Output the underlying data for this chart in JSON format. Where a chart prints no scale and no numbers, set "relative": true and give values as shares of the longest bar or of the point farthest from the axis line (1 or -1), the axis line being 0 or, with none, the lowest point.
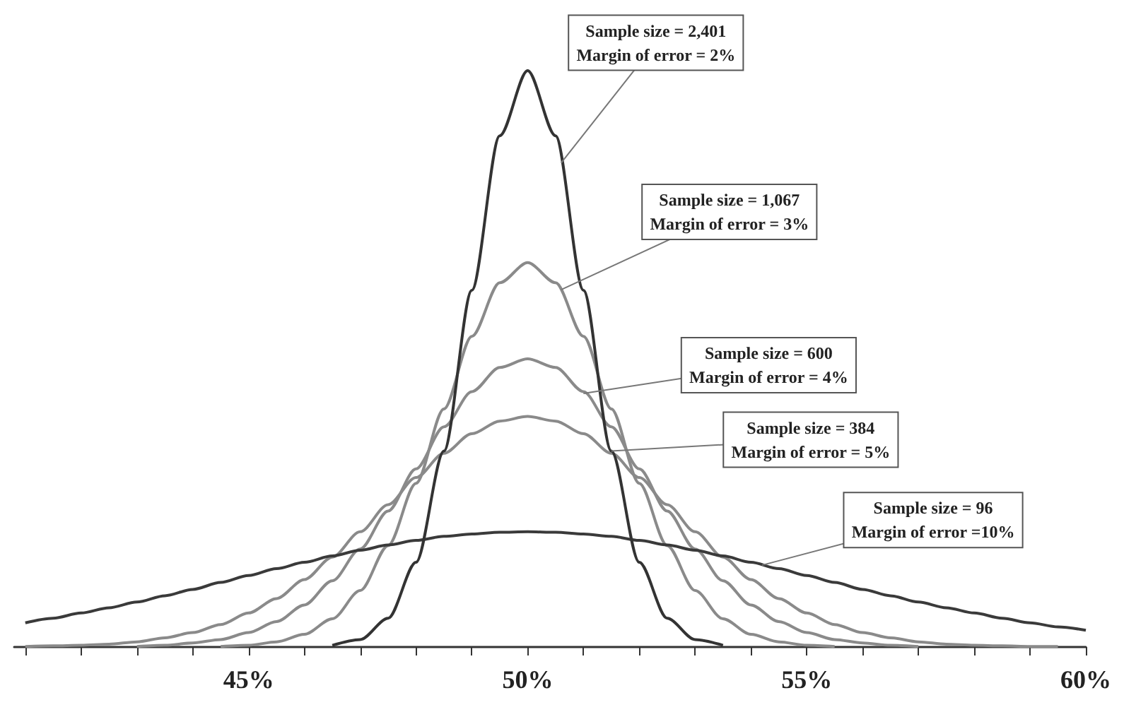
{
  "chart_data": {
    "type": "line",
    "relative": true,
    "marker": "none",
    "line_style": "solid",
    "x": [
      41,
      41.5,
      42,
      42.5,
      43,
      43.5,
      44,
      44.5,
      45,
      45.5,
      46,
      46.5,
      47,
      47.5,
      48,
      48.5,
      49,
      49.5,
      50,
      50.5,
      51,
      51.5,
      52,
      52.5,
      53,
      53.5,
      54,
      54.5,
      55,
      55.5,
      56,
      56.5,
      57,
      57.5,
      58,
      58.5,
      59,
      59.5,
      60
    ],
    "xlim": [
      40.8,
      60
    ],
    "xticks": [
      {
        "value": 41,
        "label": null
      },
      {
        "value": 42,
        "label": null
      },
      {
        "value": 43,
        "label": null
      },
      {
        "value": 44,
        "label": null
      },
      {
        "value": 45,
        "label": "45%"
      },
      {
        "value": 46,
        "label": null
      },
      {
        "value": 47,
        "label": null
      },
      {
        "value": 48,
        "label": null
      },
      {
        "value": 49,
        "label": null
      },
      {
        "value": 50,
        "label": "50%"
      },
      {
        "value": 51,
        "label": null
      },
      {
        "value": 52,
        "label": null
      },
      {
        "value": 53,
        "label": null
      },
      {
        "value": 54,
        "label": null
      },
      {
        "value": 55,
        "label": "55%"
      },
      {
        "value": 56,
        "label": null
      },
      {
        "value": 57,
        "label": null
      },
      {
        "value": 58,
        "label": null
      },
      {
        "value": 59,
        "label": null
      },
      {
        "value": 60,
        "label": "60%"
      }
    ],
    "series": [
      {
        "color": "#8a8a8a",
        "values": [
          0.001,
          0.002,
          0.003,
          0.005,
          0.009,
          0.016,
          0.025,
          0.039,
          0.059,
          0.084,
          0.117,
          0.156,
          0.2,
          0.247,
          0.294,
          0.336,
          0.37,
          0.392,
          0.4,
          0.392,
          0.37,
          0.336,
          0.294,
          0.247,
          0.2,
          0.156,
          0.117,
          0.084,
          0.059,
          0.039,
          0.025,
          0.016,
          0.009,
          0.005,
          0.003,
          0.002,
          0.001,
          0.001,
          null
        ]
      },
      {
        "color": "#8a8a8a",
        "values": [
          null,
          null,
          null,
          null,
          0.001,
          0.003,
          0.007,
          0.013,
          0.025,
          0.044,
          0.073,
          0.115,
          0.17,
          0.236,
          0.309,
          0.382,
          0.443,
          0.485,
          0.5,
          0.485,
          0.443,
          0.382,
          0.309,
          0.236,
          0.17,
          0.115,
          0.073,
          0.044,
          0.025,
          0.013,
          0.007,
          0.003,
          0.001,
          null,
          null,
          null,
          null,
          null,
          null
        ]
      },
      {
        "color": "#8a8a8a",
        "values": [
          null,
          null,
          null,
          null,
          null,
          null,
          null,
          0.001,
          0.003,
          0.009,
          0.022,
          0.049,
          0.098,
          0.176,
          0.284,
          0.413,
          0.539,
          0.632,
          0.667,
          0.632,
          0.539,
          0.413,
          0.284,
          0.176,
          0.098,
          0.049,
          0.022,
          0.009,
          0.003,
          0.001,
          null,
          null,
          null,
          null,
          null,
          null,
          null,
          null,
          null
        ]
      },
      {
        "color": "#3a3a3a",
        "values": [
          0.042,
          0.05,
          0.059,
          0.068,
          0.078,
          0.089,
          0.1,
          0.112,
          0.124,
          0.136,
          0.147,
          0.158,
          0.168,
          0.177,
          0.185,
          0.192,
          0.196,
          0.199,
          0.2,
          0.199,
          0.196,
          0.192,
          0.185,
          0.177,
          0.168,
          0.158,
          0.147,
          0.136,
          0.124,
          0.112,
          0.1,
          0.089,
          0.078,
          0.068,
          0.059,
          0.05,
          0.042,
          0.035,
          0.029
        ]
      },
      {
        "color": "#333333",
        "values": [
          null,
          null,
          null,
          null,
          null,
          null,
          null,
          null,
          null,
          null,
          null,
          0.003,
          0.013,
          0.05,
          0.147,
          0.34,
          0.619,
          0.887,
          1,
          0.887,
          0.619,
          0.34,
          0.147,
          0.05,
          0.013,
          0.003,
          null,
          null,
          null,
          null,
          null,
          null,
          null,
          null,
          null,
          null,
          null,
          null,
          null
        ]
      }
    ],
    "annotations": [
      {
        "text": "Sample size = 2,401\nMargin of error = 2%",
        "x": 50.6,
        "y": 0.84
      },
      {
        "text": "Sample size = 1,067\nMargin of error = 3%",
        "x": 50.6,
        "y": 0.62
      },
      {
        "text": "Sample size = 600\nMargin of error = 4%",
        "x": 51,
        "y": 0.44
      },
      {
        "text": "Sample size = 384\nMargin of error = 5%",
        "x": 51.5,
        "y": 0.34
      },
      {
        "text": "Sample size = 96\nMargin of error =10%",
        "x": 54.2,
        "y": 0.142
      }
    ]
  }
}
